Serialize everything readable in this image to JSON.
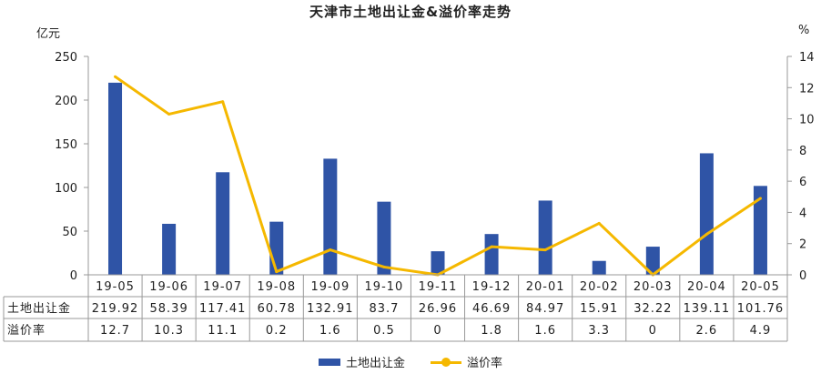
{
  "chart_data": {
    "type": "bar+line",
    "title": "天津市土地出让金&溢价率走势",
    "categories": [
      "19-05",
      "19-06",
      "19-07",
      "19-08",
      "19-09",
      "19-10",
      "19-11",
      "19-12",
      "20-01",
      "20-02",
      "20-03",
      "20-04",
      "20-05"
    ],
    "y_left": {
      "unit": "亿元",
      "ylim": [
        0,
        250
      ],
      "ticks": [
        "0",
        "50",
        "100",
        "150",
        "200",
        "250"
      ]
    },
    "y_right": {
      "unit": "%",
      "ylim": [
        0,
        14
      ],
      "ticks": [
        "0",
        "2",
        "4",
        "6",
        "8",
        "10",
        "12",
        "14"
      ]
    },
    "series": [
      {
        "name": "土地出让金",
        "kind": "bar",
        "axis": "left",
        "color": "#2f54a6",
        "values": [
          219.92,
          58.39,
          117.41,
          60.78,
          132.91,
          83.7,
          26.96,
          46.69,
          84.97,
          15.91,
          32.22,
          139.11,
          101.76
        ],
        "labels": [
          "219.92",
          "58.39",
          "117.41",
          "60.78",
          "132.91",
          "83.7",
          "26.96",
          "46.69",
          "84.97",
          "15.91",
          "32.22",
          "139.11",
          "101.76"
        ]
      },
      {
        "name": "溢价率",
        "kind": "line",
        "axis": "right",
        "color": "#f5b800",
        "values": [
          12.7,
          10.3,
          11.1,
          0.2,
          1.6,
          0.5,
          0,
          1.8,
          1.6,
          3.3,
          0,
          2.6,
          4.9
        ],
        "labels": [
          "12.7",
          "10.3",
          "11.1",
          "0.2",
          "1.6",
          "0.5",
          "0",
          "1.8",
          "1.6",
          "3.3",
          "0",
          "2.6",
          "4.9"
        ]
      }
    ],
    "legend": {
      "position": "bottom"
    },
    "grid": false
  }
}
